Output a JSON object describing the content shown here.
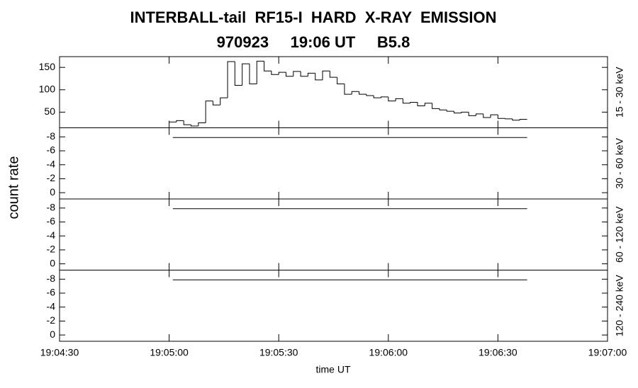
{
  "title": "INTERBALL-tail  RF15-I  HARD  X-RAY  EMISSION",
  "subtitle": "970923     19:06 UT     B5.8",
  "xlabel": "time UT",
  "ylabel": "count rate",
  "xlim": [
    68670,
    68820
  ],
  "xticks": [
    {
      "value": 68670,
      "label": "19:04:30"
    },
    {
      "value": 68700,
      "label": "19:05:00"
    },
    {
      "value": 68730,
      "label": "19:05:30"
    },
    {
      "value": 68760,
      "label": "19:06:00"
    },
    {
      "value": 68790,
      "label": "19:06:30"
    },
    {
      "value": 68820,
      "label": "19:07:00"
    }
  ],
  "chart_data": [
    {
      "type": "histogram",
      "ylabel": "15 - 30 keV",
      "color": "#000000",
      "bins": [
        68700,
        68702,
        68704,
        68706,
        68708,
        68710,
        68712,
        68714,
        68716,
        68718,
        68720,
        68722,
        68724,
        68726,
        68728,
        68730,
        68732,
        68734,
        68736,
        68738,
        68740,
        68742,
        68744,
        68746,
        68748,
        68750,
        68752,
        68754,
        68756,
        68758,
        68760,
        68762,
        68764,
        68766,
        68768,
        68770,
        68772,
        68774,
        68776,
        68778,
        68780,
        68782,
        68784,
        68786,
        68788,
        68790,
        68792,
        68794,
        68796,
        68798
      ],
      "values": [
        28,
        31,
        22,
        19,
        26,
        75,
        66,
        82,
        163,
        110,
        158,
        113,
        164,
        142,
        134,
        139,
        130,
        141,
        130,
        137,
        122,
        142,
        128,
        113,
        90,
        96,
        90,
        87,
        82,
        84,
        75,
        80,
        70,
        72,
        64,
        70,
        58,
        55,
        52,
        48,
        50,
        42,
        46,
        38,
        44,
        36,
        35,
        32,
        34
      ],
      "ylim": [
        15,
        174
      ],
      "yticks": [
        50,
        100,
        150
      ]
    },
    {
      "type": "line",
      "ylabel": "30 - 60 keV",
      "color": "#000000",
      "x": [
        68701,
        68798
      ],
      "values": [
        -7.9,
        -7.9
      ],
      "ylim": [
        0.9,
        -9.3
      ],
      "yticks": [
        -8,
        -6,
        -4,
        -2,
        0
      ]
    },
    {
      "type": "line",
      "ylabel": "60 - 120 keV",
      "color": "#000000",
      "x": [
        68701,
        68798
      ],
      "values": [
        -7.9,
        -7.9
      ],
      "ylim": [
        0.9,
        -9.3
      ],
      "yticks": [
        -8,
        -6,
        -4,
        -2,
        0
      ]
    },
    {
      "type": "line",
      "ylabel": "120 - 240 keV",
      "color": "#000000",
      "x": [
        68701,
        68798
      ],
      "values": [
        -7.9,
        -7.9
      ],
      "ylim": [
        0.9,
        -9.3
      ],
      "yticks": [
        -8,
        -6,
        -4,
        -2,
        0
      ]
    }
  ]
}
